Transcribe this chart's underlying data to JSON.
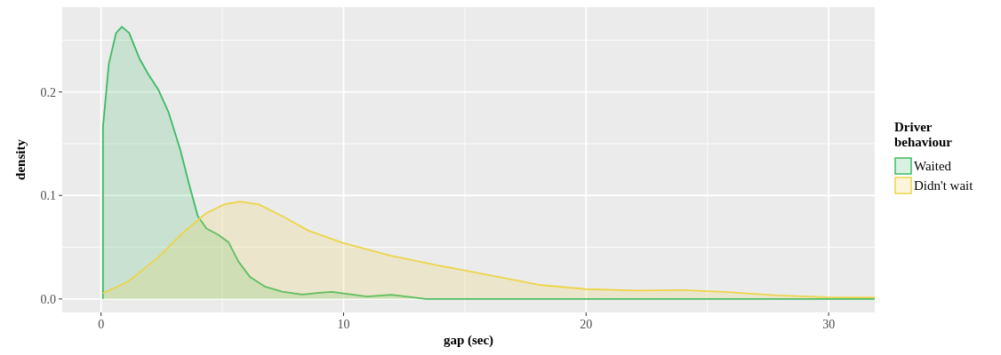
{
  "chart_data": {
    "type": "area",
    "xlabel": "gap (sec)",
    "ylabel": "density",
    "legend_title": "Driver behaviour",
    "legend": "right",
    "grid": true,
    "xlim": [
      -1.6,
      31.9
    ],
    "xticks": [
      0,
      10,
      20,
      30
    ],
    "ylim": [
      -0.013,
      0.282
    ],
    "yticks": [
      {
        "value": 0,
        "label": "0.0"
      },
      {
        "value": 0.1,
        "label": "0.1"
      },
      {
        "value": 0.2,
        "label": "0.2"
      }
    ],
    "series": [
      {
        "name": "Waited",
        "color": "#3dba66",
        "x": [
          0.08,
          0.08,
          0.32,
          0.62,
          0.86,
          1.16,
          1.59,
          1.95,
          2.37,
          2.79,
          3.27,
          3.63,
          3.99,
          4.35,
          4.83,
          5.25,
          5.67,
          6.15,
          6.75,
          7.47,
          8.3,
          9.0,
          9.52,
          10.97,
          11.98,
          13.4,
          20,
          31.9
        ],
        "values": [
          0,
          0.166,
          0.227,
          0.257,
          0.263,
          0.257,
          0.232,
          0.217,
          0.202,
          0.18,
          0.144,
          0.111,
          0.08,
          0.068,
          0.062,
          0.055,
          0.036,
          0.021,
          0.012,
          0.007,
          0.0042,
          0.006,
          0.0068,
          0.0024,
          0.004,
          0,
          0,
          0
        ]
      },
      {
        "name": "Didn't wait",
        "color": "#edd44a",
        "x": [
          0.08,
          1.1,
          2.3,
          3.38,
          4.35,
          5.07,
          5.73,
          6.51,
          7.47,
          8.55,
          9.5,
          10,
          11.98,
          14,
          16.03,
          18.05,
          20,
          22.1,
          23.97,
          25.7,
          27.9,
          29.9,
          31.9
        ],
        "values": [
          0.0055,
          0.0166,
          0.039,
          0.064,
          0.083,
          0.0913,
          0.094,
          0.0913,
          0.08,
          0.066,
          0.058,
          0.054,
          0.0415,
          0.032,
          0.023,
          0.0136,
          0.0095,
          0.0082,
          0.0085,
          0.0068,
          0.0034,
          0.0017,
          0.0014
        ]
      }
    ]
  }
}
